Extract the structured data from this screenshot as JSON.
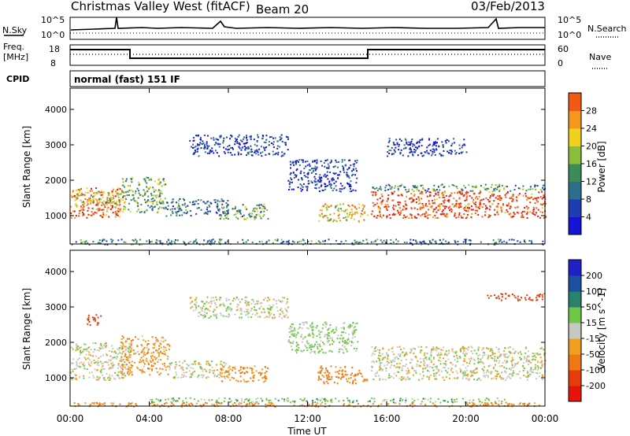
{
  "header": {
    "title": "Christmas Valley West (fitACF)",
    "beam": "Beam 20",
    "date": "03/Feb/2013"
  },
  "strip_panels": {
    "nsky_label": "N.Sky",
    "nsky_ticks": [
      "10^5",
      "10^0"
    ],
    "nsearch_label": "N.Search",
    "nsearch_ticks": [
      "10^5",
      "10^0"
    ],
    "freq_label_line1": "Freq.",
    "freq_label_line2": "[MHz]",
    "freq_ticks": [
      "18",
      "8"
    ],
    "nave_label": "Nave",
    "nave_ticks": [
      "60",
      "0"
    ],
    "cpid_label": "CPID",
    "cpid_value": "normal (fast) 151 IF"
  },
  "colors": {
    "power_scale": [
      "#1414d2",
      "#1e3cb4",
      "#2d6e8c",
      "#3c8c5a",
      "#8cbe3c",
      "#f0d21e",
      "#f5961e",
      "#f05a14",
      "#e61e0a"
    ],
    "velocity_scale": [
      "#2020c8",
      "#1e50a0",
      "#28826e",
      "#6ec846",
      "#c8c8c3",
      "#f0a01e",
      "#f07814",
      "#e63c0a",
      "#e6140a"
    ]
  },
  "chart_data": [
    {
      "type": "heatmap",
      "panel": "power",
      "ylabel": "Slant Range [km]",
      "yticks": [
        "1000",
        "2000",
        "3000",
        "4000"
      ],
      "ylim": [
        200,
        4600
      ],
      "xlim": [
        "00:00",
        "24:00"
      ],
      "colorbar_label": "Power [dB]",
      "colorbar_ticks": [
        "4",
        "8",
        "12",
        "16",
        "20",
        "24",
        "28"
      ],
      "colorbar_range": [
        0,
        32
      ],
      "regions": [
        {
          "t0": 0.0,
          "t1": 2.6,
          "r0": 950,
          "r1": 1800,
          "value": 26
        },
        {
          "t0": 0.2,
          "t1": 2.8,
          "r0": 1300,
          "r1": 1700,
          "value": 18
        },
        {
          "t0": 2.6,
          "t1": 4.8,
          "r0": 1100,
          "r1": 2100,
          "value": 14
        },
        {
          "t0": 4.8,
          "t1": 8.0,
          "r0": 1000,
          "r1": 1500,
          "value": 8
        },
        {
          "t0": 7.5,
          "t1": 10.0,
          "r0": 900,
          "r1": 1350,
          "value": 14
        },
        {
          "t0": 6.0,
          "t1": 11.0,
          "r0": 2700,
          "r1": 3300,
          "value": 4
        },
        {
          "t0": 11.0,
          "t1": 14.5,
          "r0": 1700,
          "r1": 2600,
          "value": 4
        },
        {
          "t0": 12.5,
          "t1": 15.0,
          "r0": 850,
          "r1": 1350,
          "value": 20
        },
        {
          "t0": 15.2,
          "t1": 24.0,
          "r0": 950,
          "r1": 1700,
          "value": 28
        },
        {
          "t0": 15.2,
          "t1": 24.0,
          "r0": 1700,
          "r1": 1900,
          "value": 12
        },
        {
          "t0": 16.0,
          "t1": 20.0,
          "r0": 2700,
          "r1": 3200,
          "value": 4
        },
        {
          "t0": 0.0,
          "t1": 24.0,
          "r0": 200,
          "r1": 350,
          "value": 10
        }
      ]
    },
    {
      "type": "heatmap",
      "panel": "velocity",
      "xlabel": "Time UT",
      "ylabel": "Slant Range [km]",
      "xticks": [
        "00:00",
        "04:00",
        "08:00",
        "12:00",
        "16:00",
        "20:00",
        "00:00"
      ],
      "yticks": [
        "1000",
        "2000",
        "3000",
        "4000"
      ],
      "ylim": [
        200,
        4600
      ],
      "xlim": [
        "00:00",
        "24:00"
      ],
      "colorbar_label": "Velocity [m s^-1]",
      "colorbar_ticks": [
        "200",
        "100",
        "50",
        "15",
        "-15",
        "-50",
        "-100",
        "-200"
      ],
      "regions": [
        {
          "t0": 0.0,
          "t1": 3.0,
          "r0": 950,
          "r1": 2000,
          "value": 0
        },
        {
          "t0": 2.5,
          "t1": 5.0,
          "r0": 1100,
          "r1": 2200,
          "value": -40
        },
        {
          "t0": 5.0,
          "t1": 8.0,
          "r0": 1000,
          "r1": 1500,
          "value": 0
        },
        {
          "t0": 7.5,
          "t1": 10.0,
          "r0": 900,
          "r1": 1350,
          "value": -60
        },
        {
          "t0": 6.0,
          "t1": 11.0,
          "r0": 2700,
          "r1": 3300,
          "value": 0
        },
        {
          "t0": 11.0,
          "t1": 14.5,
          "r0": 1700,
          "r1": 2600,
          "value": 20
        },
        {
          "t0": 12.5,
          "t1": 15.0,
          "r0": 850,
          "r1": 1350,
          "value": -60
        },
        {
          "t0": 15.2,
          "t1": 24.0,
          "r0": 950,
          "r1": 1900,
          "value": 0
        },
        {
          "t0": 0.8,
          "t1": 1.6,
          "r0": 2500,
          "r1": 2800,
          "value": -150
        },
        {
          "t0": 21.0,
          "t1": 24.0,
          "r0": 3200,
          "r1": 3400,
          "value": -150
        },
        {
          "t0": 0.0,
          "t1": 24.0,
          "r0": 200,
          "r1": 320,
          "value": -60
        },
        {
          "t0": 4.0,
          "t1": 22.0,
          "r0": 320,
          "r1": 450,
          "value": 30
        }
      ]
    }
  ]
}
